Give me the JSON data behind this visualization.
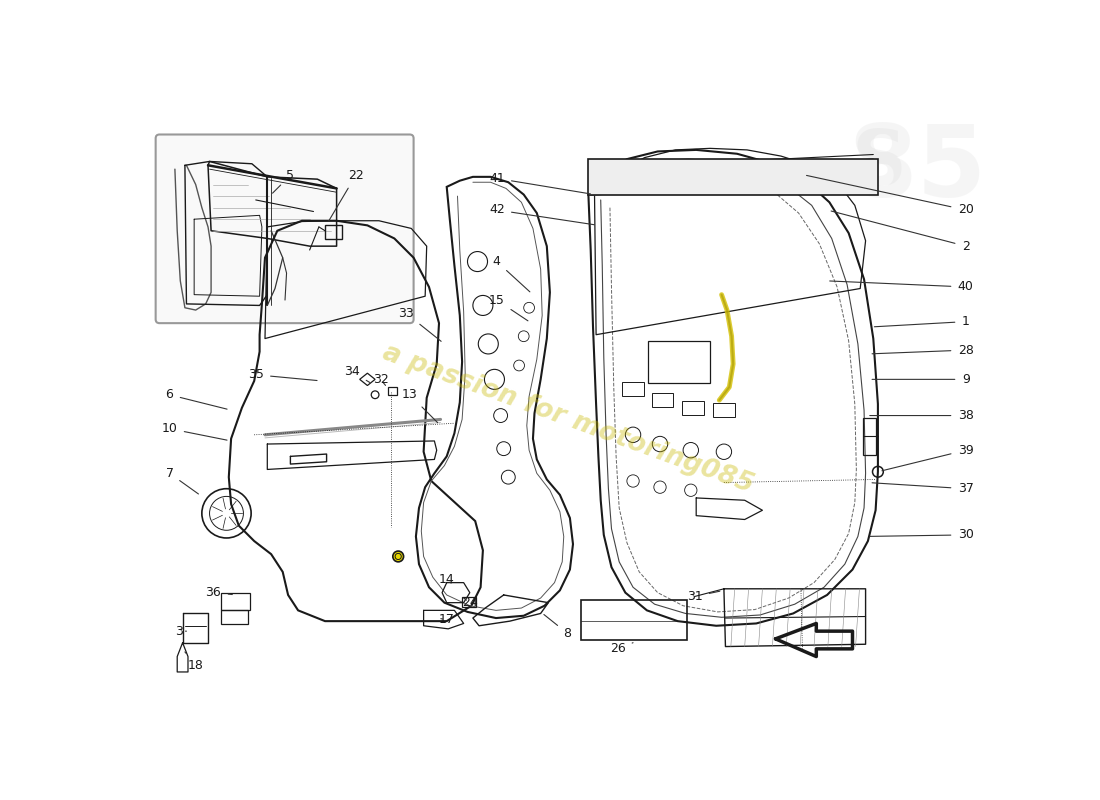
{
  "background_color": "#ffffff",
  "line_color": "#1a1a1a",
  "label_color": "#1a1a1a",
  "watermark_text": "a passion for motoring085",
  "watermark_color": "#c8b800",
  "watermark_alpha": 0.38,
  "figsize": [
    11.0,
    8.0
  ],
  "dpi": 100,
  "right_labels": [
    [
      "20",
      1072,
      148
    ],
    [
      "2",
      1072,
      195
    ],
    [
      "40",
      1072,
      248
    ],
    [
      "1",
      1072,
      293
    ],
    [
      "28",
      1072,
      330
    ],
    [
      "9",
      1072,
      368
    ],
    [
      "38",
      1072,
      415
    ],
    [
      "39",
      1072,
      460
    ],
    [
      "37",
      1072,
      510
    ],
    [
      "30",
      1072,
      570
    ]
  ],
  "other_labels": [
    [
      "41",
      463,
      107
    ],
    [
      "42",
      463,
      148
    ],
    [
      "4",
      463,
      215
    ],
    [
      "15",
      463,
      265
    ],
    [
      "33",
      345,
      282
    ],
    [
      "13",
      350,
      388
    ],
    [
      "6",
      38,
      388
    ],
    [
      "10",
      38,
      432
    ],
    [
      "7",
      38,
      490
    ],
    [
      "35",
      150,
      362
    ],
    [
      "34",
      275,
      358
    ],
    [
      "32",
      312,
      368
    ],
    [
      "5",
      195,
      107
    ],
    [
      "22",
      280,
      107
    ],
    [
      "14",
      398,
      628
    ],
    [
      "24",
      428,
      658
    ],
    [
      "17",
      398,
      680
    ],
    [
      "8",
      555,
      698
    ],
    [
      "26",
      620,
      718
    ],
    [
      "31",
      720,
      650
    ],
    [
      "36",
      95,
      645
    ],
    [
      "3",
      50,
      695
    ],
    [
      "18",
      72,
      740
    ]
  ]
}
